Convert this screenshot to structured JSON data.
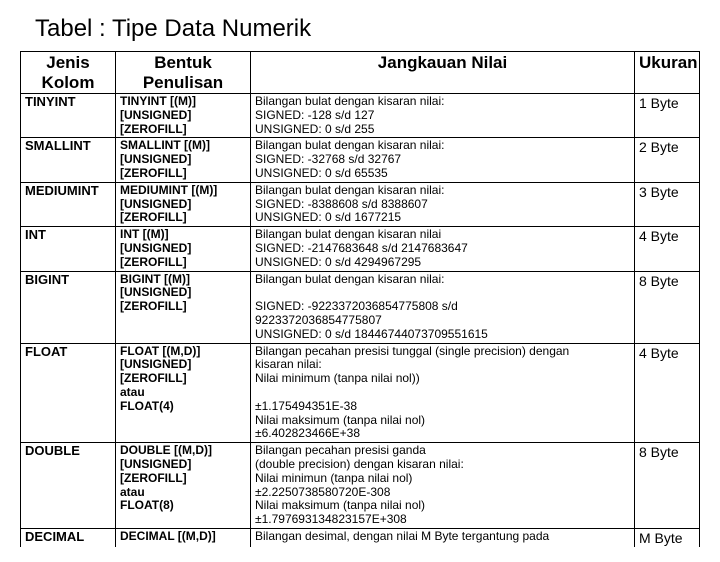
{
  "title": "Tabel : Tipe Data Numerik",
  "headers": {
    "jenis": "Jenis Kolom",
    "bentuk": "Bentuk Penulisan",
    "jangkauan": "Jangkauan Nilai",
    "ukuran": "Ukuran"
  },
  "rows": [
    {
      "jenis": "TINYINT",
      "bentuk": "TINYINT [(M)]\n[UNSIGNED]\n[ZEROFILL]",
      "jangkauan": "Bilangan bulat dengan kisaran nilai:\nSIGNED: -128 s/d 127\nUNSIGNED: 0 s/d 255",
      "ukuran": "1 Byte"
    },
    {
      "jenis": "SMALLINT",
      "bentuk": "SMALLINT [(M)]\n[UNSIGNED]\n[ZEROFILL]",
      "jangkauan": "Bilangan bulat dengan kisaran nilai:\nSIGNED: -32768 s/d 32767\nUNSIGNED: 0 s/d 65535",
      "ukuran": "2 Byte"
    },
    {
      "jenis": "MEDIUMINT",
      "bentuk": "MEDIUMINT [(M)]\n[UNSIGNED]\n[ZEROFILL]",
      "jangkauan": "Bilangan bulat dengan kisaran nilai:\nSIGNED: -8388608 s/d 8388607\nUNSIGNED: 0 s/d 1677215",
      "ukuran": "3 Byte"
    },
    {
      "jenis": "INT",
      "bentuk": "INT [(M)]\n[UNSIGNED]\n[ZEROFILL]",
      "jangkauan": "Bilangan bulat dengan kisaran nilai\nSIGNED: -2147683648 s/d 2147683647\nUNSIGNED: 0 s/d 4294967295",
      "ukuran": "4 Byte"
    },
    {
      "jenis": "BIGINT",
      "bentuk": "BIGINT [(M)]\n[UNSIGNED]\n[ZEROFILL]",
      "jangkauan": "Bilangan bulat dengan kisaran nilai:\n\nSIGNED: -9223372036854775808 s/d\n9223372036854775807\nUNSIGNED: 0 s/d 18446744073709551615",
      "ukuran": "8 Byte"
    },
    {
      "jenis": "FLOAT",
      "bentuk": "FLOAT [(M,D)]\n[UNSIGNED]\n[ZEROFILL]\natau\nFLOAT(4)",
      "jangkauan": "Bilangan pecahan presisi tunggal (single precision) dengan\nkisaran nilai:\nNilai minimum (tanpa nilai nol))\n\n±1.175494351E-38\nNilai maksimum (tanpa nilai nol)\n±6.402823466E+38",
      "ukuran": "4 Byte"
    },
    {
      "jenis": "DOUBLE",
      "bentuk": "DOUBLE [(M,D)]\n[UNSIGNED]\n[ZEROFILL]\natau\nFLOAT(8)",
      "jangkauan": "Bilangan pecahan presisi ganda\n(double precision) dengan kisaran nilai:\nNilai minimun (tanpa nilai nol)\n±2.2250738580720E-308\nNilai maksimum (tanpa nilai nol)\n±1.797693134823157E+308",
      "ukuran": "8 Byte"
    },
    {
      "jenis": "DECIMAL",
      "bentuk": "DECIMAL [(M,D)]",
      "jangkauan": "Bilangan desimal, dengan nilai M Byte tergantung pada",
      "ukuran": "M Byte"
    }
  ]
}
